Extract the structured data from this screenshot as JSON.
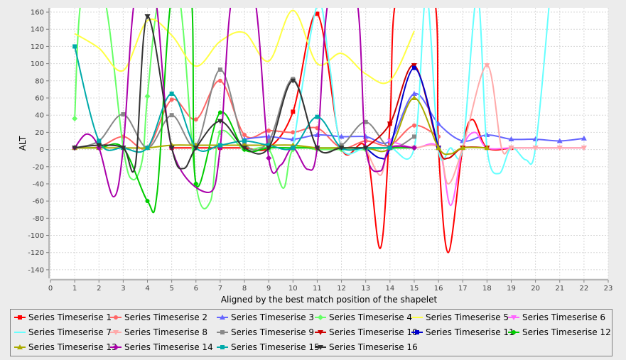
{
  "chart_data": {
    "type": "line",
    "xlabel": "Aligned by the best match position of the shapelet",
    "ylabel": "ALT",
    "xlim": [
      0,
      23
    ],
    "ylim": [
      -150,
      165
    ],
    "xticks": [
      0,
      1,
      2,
      3,
      4,
      5,
      6,
      7,
      8,
      9,
      10,
      11,
      12,
      13,
      14,
      15,
      16,
      17,
      18,
      19,
      20,
      21,
      22,
      23
    ],
    "yticks": [
      -140,
      -120,
      -100,
      -80,
      -60,
      -40,
      -20,
      0,
      20,
      40,
      60,
      80,
      100,
      120,
      140,
      160
    ],
    "grid": true,
    "legend_position": "bottom",
    "series": [
      {
        "name": "Series Timeserise 1",
        "color": "#ff0000",
        "marker": "square",
        "points": [
          [
            5,
            2
          ],
          [
            6,
            2
          ],
          [
            7,
            2
          ],
          [
            8,
            2
          ],
          [
            9,
            2
          ],
          [
            10,
            44
          ],
          [
            11,
            158
          ],
          [
            12,
            2
          ],
          [
            13,
            2
          ],
          [
            13.6,
            -115
          ],
          [
            14,
            30
          ],
          [
            14.3,
            180
          ],
          [
            15.8,
            180
          ],
          [
            16,
            2
          ],
          [
            16.4,
            -120
          ],
          [
            17,
            2
          ],
          [
            17.4,
            35
          ],
          [
            18,
            2
          ],
          [
            19,
            2
          ]
        ]
      },
      {
        "name": "Series Timeserise 2",
        "color": "#ff6666",
        "marker": "circle",
        "points": [
          [
            1,
            2
          ],
          [
            2,
            3
          ],
          [
            3,
            15
          ],
          [
            4,
            2
          ],
          [
            5,
            58
          ],
          [
            6,
            35
          ],
          [
            7,
            80
          ],
          [
            8,
            17
          ],
          [
            9,
            22
          ],
          [
            10,
            20
          ],
          [
            11,
            25
          ],
          [
            12,
            2
          ],
          [
            13,
            10
          ],
          [
            14,
            5
          ],
          [
            15,
            28
          ],
          [
            16,
            15
          ]
        ]
      },
      {
        "name": "Series Timeserise 3",
        "color": "#6666ff",
        "marker": "triangle",
        "points": [
          [
            8,
            12
          ],
          [
            9,
            15
          ],
          [
            10,
            12
          ],
          [
            11,
            17
          ],
          [
            12,
            15
          ],
          [
            13,
            15
          ],
          [
            14,
            10
          ],
          [
            15,
            65
          ],
          [
            16,
            30
          ],
          [
            17,
            10
          ],
          [
            18,
            17
          ],
          [
            19,
            12
          ],
          [
            20,
            12
          ],
          [
            21,
            10
          ],
          [
            22,
            13
          ]
        ]
      },
      {
        "name": "Series Timeserise 4",
        "color": "#66ff66",
        "marker": "diamond",
        "points": [
          [
            1,
            36
          ],
          [
            1.3,
            180
          ],
          [
            2.2,
            180
          ],
          [
            3,
            2
          ],
          [
            3.4,
            -35
          ],
          [
            3.8,
            -10
          ],
          [
            4,
            62
          ],
          [
            4.5,
            180
          ],
          [
            5.3,
            180
          ],
          [
            6,
            -40
          ],
          [
            6.6,
            -60
          ],
          [
            7,
            20
          ],
          [
            8,
            0
          ],
          [
            9,
            0
          ],
          [
            9.6,
            -45
          ],
          [
            10,
            0
          ],
          [
            11,
            0
          ],
          [
            12,
            0
          ],
          [
            13,
            0
          ],
          [
            14,
            2
          ],
          [
            15,
            2
          ]
        ]
      },
      {
        "name": "Series Timeserise 5",
        "color": "#ffff44",
        "marker": "none",
        "points": [
          [
            1,
            135
          ],
          [
            2,
            118
          ],
          [
            3,
            92
          ],
          [
            4,
            150
          ],
          [
            5,
            133
          ],
          [
            6,
            97
          ],
          [
            7,
            126
          ],
          [
            8,
            136
          ],
          [
            9,
            103
          ],
          [
            10,
            162
          ],
          [
            11,
            100
          ],
          [
            12,
            112
          ],
          [
            13,
            88
          ],
          [
            14,
            80
          ],
          [
            15,
            138
          ]
        ]
      },
      {
        "name": "Series Timeserise 6",
        "color": "#ff66ff",
        "marker": "triangle-down",
        "points": [
          [
            14,
            10
          ],
          [
            15,
            2
          ],
          [
            16,
            2
          ],
          [
            16.5,
            -65
          ],
          [
            17,
            2
          ],
          [
            17.5,
            20
          ],
          [
            18,
            2
          ],
          [
            19,
            2
          ],
          [
            20,
            2
          ],
          [
            21,
            2
          ],
          [
            22,
            2
          ]
        ]
      },
      {
        "name": "Series Timeserise 7",
        "color": "#66ffff",
        "marker": "none",
        "points": [
          [
            10,
            2
          ],
          [
            11,
            168
          ],
          [
            11.5,
            100
          ],
          [
            12,
            2
          ],
          [
            13,
            2
          ],
          [
            14,
            2
          ],
          [
            15,
            2
          ],
          [
            15.5,
            180
          ],
          [
            16,
            0
          ],
          [
            16.5,
            2
          ],
          [
            17,
            2
          ],
          [
            17.6,
            180
          ],
          [
            18,
            2
          ],
          [
            18.5,
            -28
          ],
          [
            19,
            2
          ],
          [
            19.6,
            -12
          ],
          [
            20,
            2
          ],
          [
            20.6,
            180
          ]
        ]
      },
      {
        "name": "Series Timeserise 8",
        "color": "#ffaaaa",
        "marker": "triangle-down",
        "points": [
          [
            13,
            2
          ],
          [
            13.6,
            -30
          ],
          [
            14,
            2
          ],
          [
            15,
            2
          ],
          [
            16,
            2
          ],
          [
            16.4,
            -40
          ],
          [
            17,
            2
          ],
          [
            18,
            98
          ],
          [
            18.6,
            2
          ],
          [
            19,
            2
          ],
          [
            20,
            2
          ],
          [
            21,
            2
          ],
          [
            22,
            2
          ]
        ]
      },
      {
        "name": "Series Timeserise 9",
        "color": "#888888",
        "marker": "square",
        "points": [
          [
            1,
            2
          ],
          [
            2,
            10
          ],
          [
            3,
            41
          ],
          [
            4,
            2
          ],
          [
            5,
            40
          ],
          [
            6,
            5
          ],
          [
            7,
            93
          ],
          [
            8,
            8
          ],
          [
            9,
            10
          ],
          [
            10,
            82
          ],
          [
            11,
            2
          ],
          [
            12,
            5
          ],
          [
            13,
            32
          ],
          [
            14,
            2
          ],
          [
            15,
            15
          ]
        ]
      },
      {
        "name": "Series Timeserise 10",
        "color": "#cc0000",
        "marker": "triangle-down",
        "points": [
          [
            13,
            2
          ],
          [
            14,
            30
          ],
          [
            15,
            98
          ],
          [
            16,
            2
          ],
          [
            16.4,
            -10
          ],
          [
            17,
            2
          ],
          [
            18,
            2
          ]
        ]
      },
      {
        "name": "Series Timeserise 11",
        "color": "#0000cc",
        "marker": "square",
        "points": [
          [
            13,
            2
          ],
          [
            13.6,
            -10
          ],
          [
            14,
            2
          ],
          [
            15,
            95
          ],
          [
            16,
            2
          ]
        ]
      },
      {
        "name": "Series Timeserise 12",
        "color": "#00cc00",
        "marker": "circle",
        "points": [
          [
            1,
            2
          ],
          [
            2,
            2
          ],
          [
            3,
            2
          ],
          [
            4,
            -60
          ],
          [
            4.4,
            -50
          ],
          [
            5,
            180
          ],
          [
            5.8,
            180
          ],
          [
            6,
            -40
          ],
          [
            7,
            43
          ],
          [
            8,
            0
          ],
          [
            9,
            2
          ],
          [
            10,
            2
          ],
          [
            11,
            2
          ],
          [
            12,
            2
          ],
          [
            13,
            2
          ],
          [
            14,
            2
          ],
          [
            15,
            2
          ]
        ]
      },
      {
        "name": "Series Timeserise 13",
        "color": "#aaaa00",
        "marker": "triangle",
        "points": [
          [
            1,
            2
          ],
          [
            2,
            2
          ],
          [
            3,
            2
          ],
          [
            4,
            2
          ],
          [
            5,
            5
          ],
          [
            6,
            5
          ],
          [
            7,
            5
          ],
          [
            8,
            5
          ],
          [
            9,
            5
          ],
          [
            10,
            5
          ],
          [
            11,
            2
          ],
          [
            12,
            2
          ],
          [
            13,
            2
          ],
          [
            14,
            2
          ],
          [
            15,
            60
          ],
          [
            16,
            2
          ],
          [
            16.5,
            -5
          ],
          [
            17,
            2
          ],
          [
            18,
            2
          ]
        ]
      },
      {
        "name": "Series Timeserise 14",
        "color": "#aa00aa",
        "marker": "diamond",
        "points": [
          [
            1,
            2
          ],
          [
            1.5,
            18
          ],
          [
            2,
            2
          ],
          [
            2.6,
            -55
          ],
          [
            3,
            2
          ],
          [
            3.5,
            180
          ],
          [
            4.3,
            180
          ],
          [
            5,
            2
          ],
          [
            6.5,
            -50
          ],
          [
            7,
            2
          ],
          [
            7.5,
            180
          ],
          [
            8.4,
            180
          ],
          [
            9,
            -10
          ],
          [
            9.5,
            -18
          ],
          [
            10,
            2
          ],
          [
            10.6,
            -23
          ],
          [
            11,
            2
          ],
          [
            11.5,
            180
          ],
          [
            12.6,
            180
          ],
          [
            13,
            2
          ],
          [
            13.6,
            -25
          ],
          [
            14,
            2
          ],
          [
            15,
            2
          ]
        ]
      },
      {
        "name": "Series Timeserise 15",
        "color": "#00aaaa",
        "marker": "square",
        "points": [
          [
            1,
            120
          ],
          [
            2,
            10
          ],
          [
            3,
            2
          ],
          [
            4,
            2
          ],
          [
            5,
            65
          ],
          [
            6,
            2
          ],
          [
            7,
            5
          ],
          [
            8,
            10
          ],
          [
            9,
            5
          ],
          [
            10,
            2
          ],
          [
            11,
            38
          ],
          [
            12,
            2
          ],
          [
            13,
            2
          ],
          [
            14,
            2
          ]
        ]
      },
      {
        "name": "Series Timeserise 16",
        "color": "#333333",
        "marker": "triangle-down",
        "points": [
          [
            1,
            2
          ],
          [
            2,
            5
          ],
          [
            3,
            2
          ],
          [
            3.5,
            -18
          ],
          [
            4,
            155
          ],
          [
            5,
            2
          ],
          [
            5.5,
            -22
          ],
          [
            6,
            2
          ],
          [
            7,
            33
          ],
          [
            8,
            2
          ],
          [
            9,
            2
          ],
          [
            10,
            80
          ],
          [
            11,
            2
          ],
          [
            12,
            2
          ],
          [
            13,
            2
          ]
        ]
      }
    ]
  }
}
